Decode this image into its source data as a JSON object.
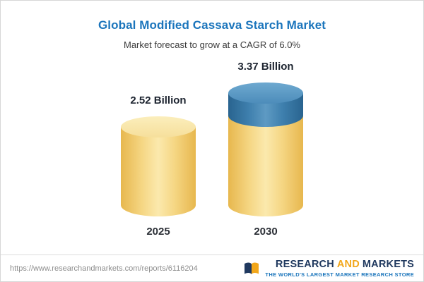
{
  "header": {
    "title": "Global Modified Cassava Starch Market",
    "subtitle": "Market forecast to grow at a CAGR of 6.0%"
  },
  "chart_data": {
    "type": "bar",
    "variant": "cylinder-3d",
    "title": "Global Modified Cassava Starch Market",
    "subtitle": "Market forecast to grow at a CAGR of 6.0%",
    "categories": [
      "2025",
      "2030"
    ],
    "values": [
      2.52,
      3.37
    ],
    "value_labels": [
      "2.52 Billion",
      "3.37 Billion"
    ],
    "unit": "Billion",
    "ylim": [
      0,
      3.37
    ],
    "grid": false,
    "legend": "none",
    "annotations": "2030 bar shows growth portion (value above 2.52) in blue on top of yellow base",
    "colors": {
      "bar_base_yellow": "#F2CB62",
      "bar_growth_blue": "#3A79A8",
      "title_blue": "#1B75BC",
      "label_dark": "#1D2430"
    }
  },
  "footer": {
    "url": "https://www.researchandmarkets.com/reports/6116204",
    "logo": {
      "word_research": "RESEARCH",
      "word_and": "AND",
      "word_markets": "MARKETS",
      "tagline": "THE WORLD'S LARGEST MARKET RESEARCH STORE"
    },
    "colors": {
      "navy": "#20395F",
      "orange": "#F2A71B",
      "tagline_blue": "#1B75BC"
    }
  }
}
